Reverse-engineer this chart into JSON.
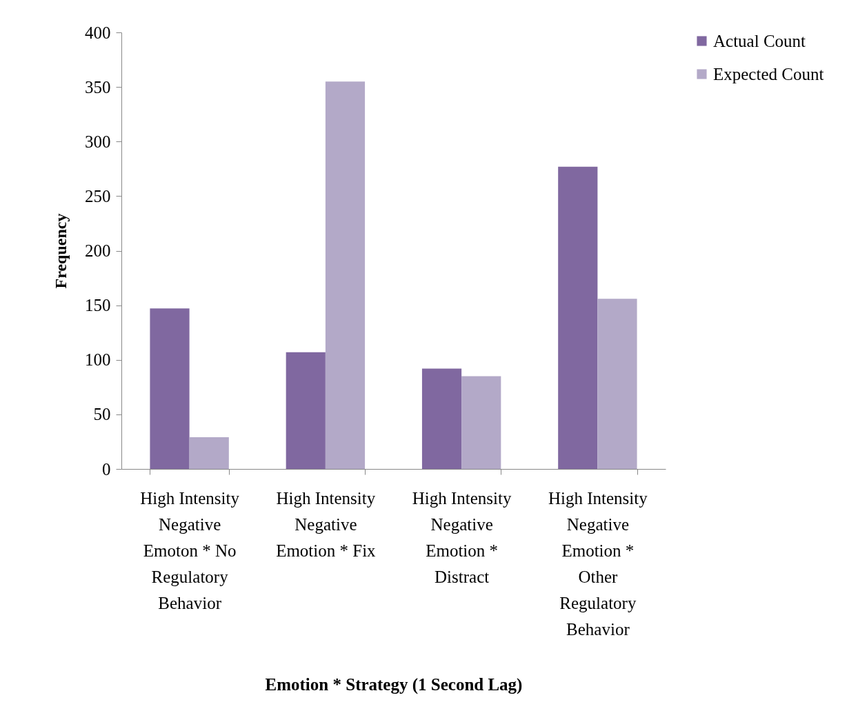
{
  "chart_data": {
    "type": "bar",
    "xlabel": "Emotion * Strategy (1 Second Lag)",
    "ylabel": "Frequency",
    "categories": [
      "High Intensity Negative Emoton * No Regulatory Behavior",
      "High Intensity Negative Emotion * Fix",
      "High Intensity Negative Emotion * Distract",
      "High Intensity Negative Emotion * Other Regulatory Behavior"
    ],
    "series": [
      {
        "name": "Actual Count",
        "color": "#8068a0",
        "values": [
          147,
          107,
          92,
          277
        ]
      },
      {
        "name": "Expected Count",
        "color": "#b3a9c8",
        "values": [
          29,
          355,
          85,
          156
        ]
      }
    ],
    "ylim": [
      0,
      400
    ],
    "yticks": [
      0,
      50,
      100,
      150,
      200,
      250,
      300,
      350,
      400
    ],
    "grid": false,
    "legend": "right"
  }
}
